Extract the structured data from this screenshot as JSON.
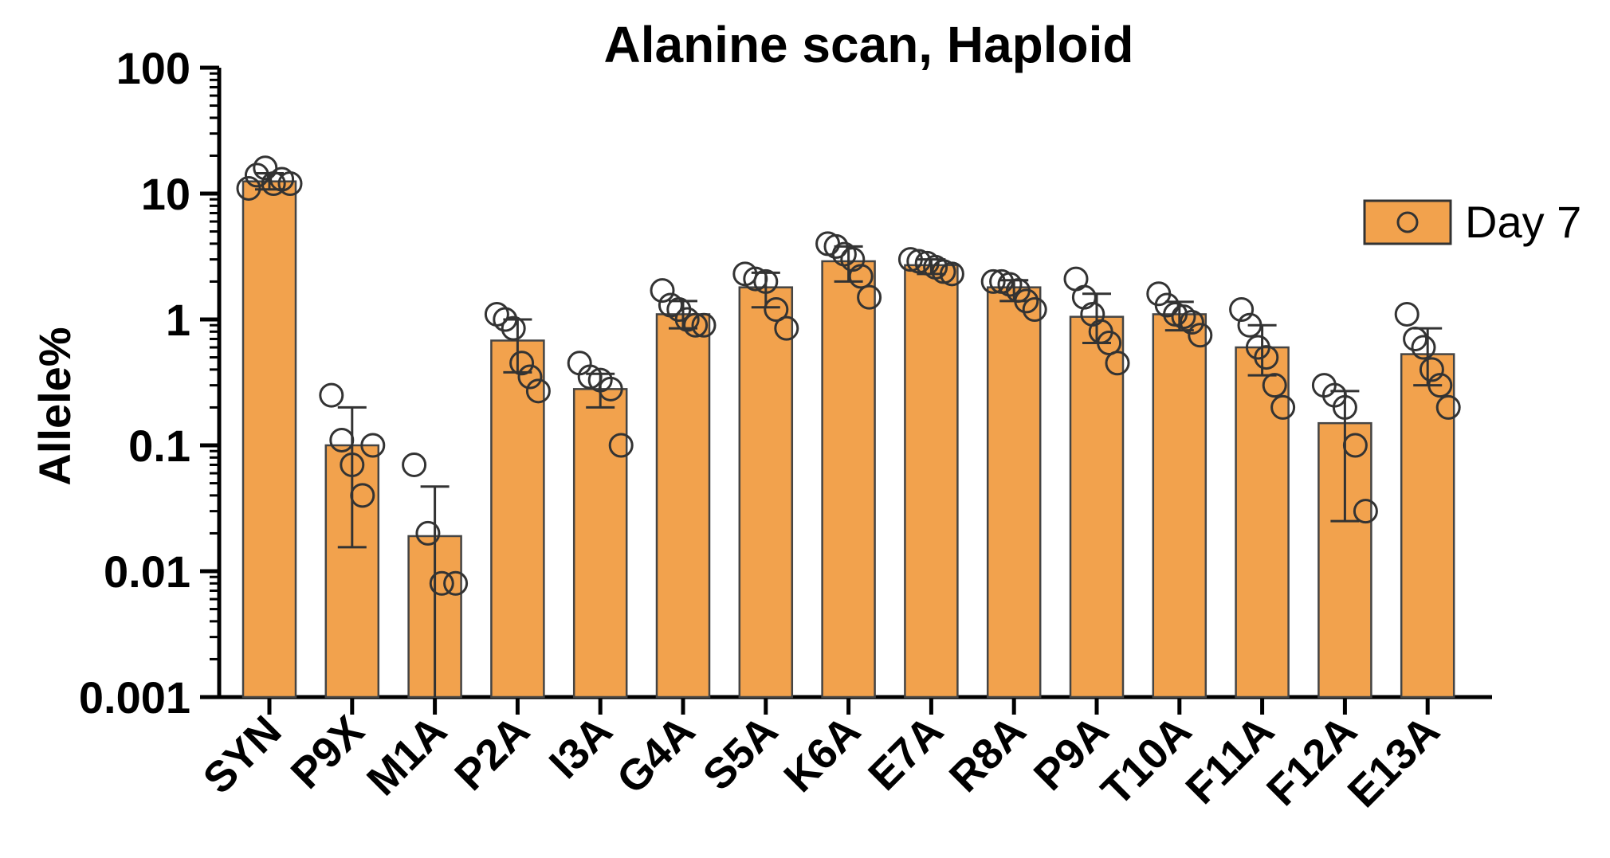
{
  "chart_data": {
    "type": "bar",
    "title": "Alanine scan, Haploid",
    "ylabel": "Allele%",
    "xlabel": "",
    "y_scale": "log",
    "ylim": [
      0.001,
      100
    ],
    "y_ticks": [
      "100",
      "10",
      "1",
      "0.1",
      "0.01",
      "0.001"
    ],
    "y_tick_values": [
      100,
      10,
      1,
      0.1,
      0.01,
      0.001
    ],
    "grid": false,
    "legend_position": "top-right",
    "bar_color": "#F2A24D",
    "categories": [
      "SYN",
      "P9X",
      "M1A",
      "P2A",
      "I3A",
      "G4A",
      "S5A",
      "K6A",
      "E7A",
      "R8A",
      "P9A",
      "T10A",
      "F11A",
      "F12A",
      "E13A"
    ],
    "series": [
      {
        "name": "Day 7",
        "values": [
          12.5,
          0.1,
          0.019,
          0.68,
          0.28,
          1.1,
          1.8,
          2.9,
          2.7,
          1.8,
          1.05,
          1.1,
          0.6,
          0.15,
          0.53
        ],
        "error_low": [
          10.8,
          0.0155,
          0.001,
          0.38,
          0.2,
          0.85,
          1.25,
          2.0,
          2.3,
          1.4,
          0.65,
          0.82,
          0.36,
          0.025,
          0.3
        ],
        "error_high": [
          14.5,
          0.2,
          0.047,
          1.0,
          0.37,
          1.4,
          2.35,
          3.8,
          3.0,
          2.05,
          1.6,
          1.38,
          0.9,
          0.27,
          0.85
        ],
        "points": [
          [
            11,
            14,
            16,
            12,
            13,
            12
          ],
          [
            0.25,
            0.11,
            0.07,
            0.04,
            0.1
          ],
          [
            0.07,
            0.02,
            0.008,
            0.008
          ],
          [
            1.1,
            1.0,
            0.85,
            0.45,
            0.35,
            0.27
          ],
          [
            0.45,
            0.35,
            0.33,
            0.28,
            0.1
          ],
          [
            1.7,
            1.3,
            1.2,
            1.0,
            0.9,
            0.9
          ],
          [
            2.3,
            2.1,
            2.0,
            1.2,
            0.85
          ],
          [
            4.0,
            3.8,
            3.3,
            3.0,
            2.2,
            1.5
          ],
          [
            3.0,
            2.9,
            2.8,
            2.6,
            2.4,
            2.3
          ],
          [
            2.0,
            2.0,
            1.9,
            1.7,
            1.4,
            1.2
          ],
          [
            2.1,
            1.5,
            1.1,
            0.8,
            0.65,
            0.45
          ],
          [
            1.6,
            1.3,
            1.1,
            1.05,
            0.95,
            0.75
          ],
          [
            1.2,
            0.9,
            0.6,
            0.5,
            0.3,
            0.2
          ],
          [
            0.3,
            0.25,
            0.2,
            0.1,
            0.03
          ],
          [
            1.1,
            0.7,
            0.6,
            0.4,
            0.3,
            0.2
          ]
        ]
      }
    ]
  }
}
